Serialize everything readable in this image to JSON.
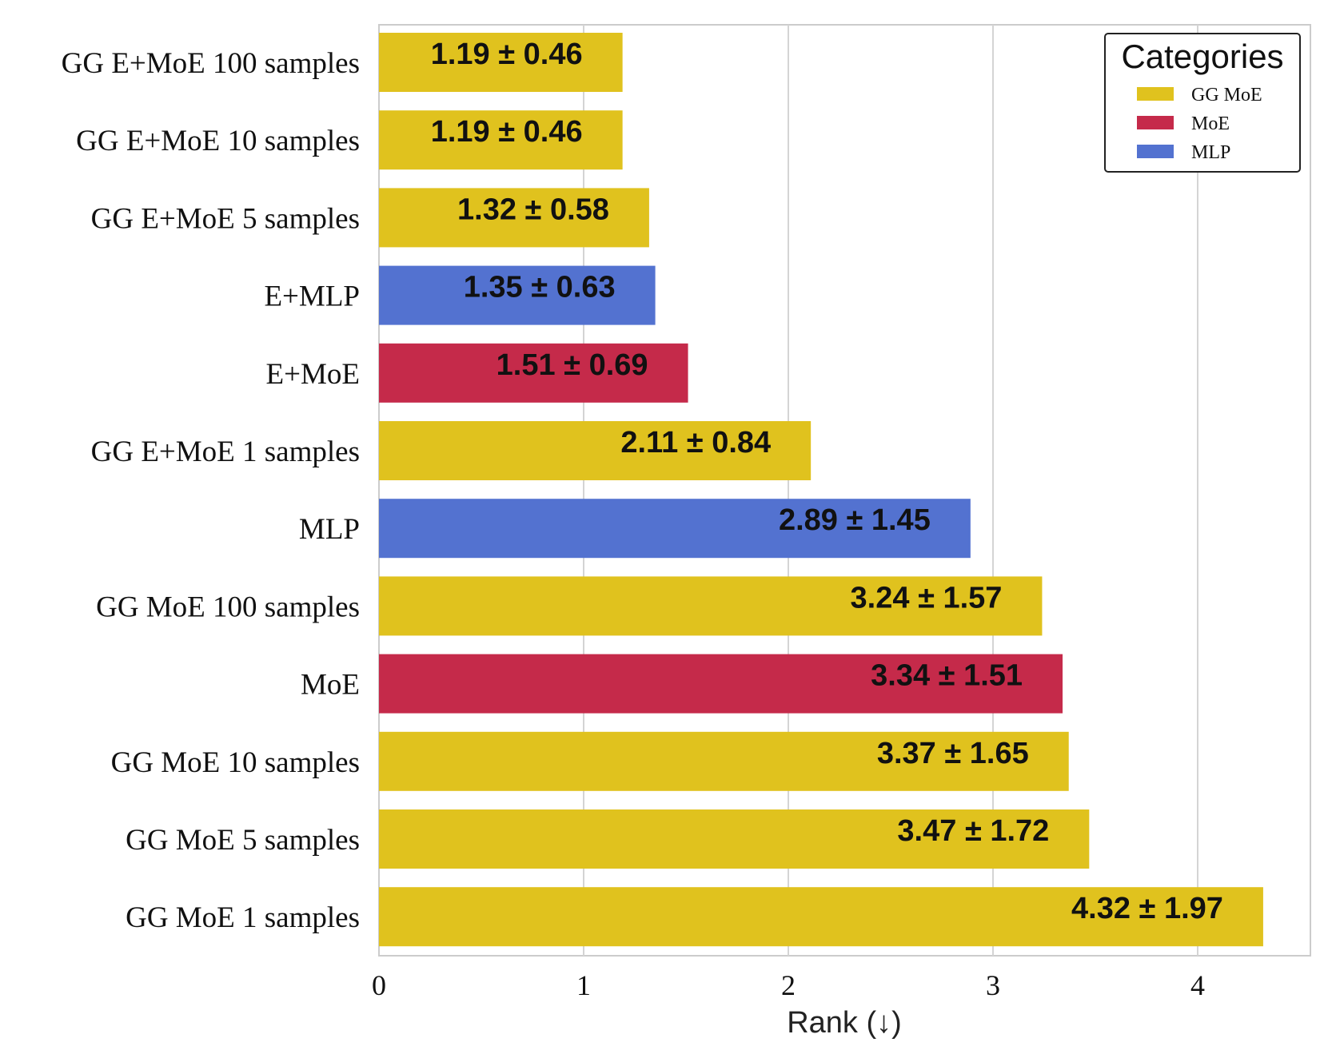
{
  "chart_data": {
    "type": "bar",
    "orientation": "horizontal",
    "xlabel": "Rank (↓)",
    "xlim": [
      0,
      4.55
    ],
    "xticks": [
      0,
      1,
      2,
      3,
      4
    ],
    "grid": true,
    "legend": {
      "title": "Categories",
      "placement": "top-right",
      "entries": [
        {
          "name": "GG MoE",
          "color": "#E0C21E"
        },
        {
          "name": "MoE",
          "color": "#C52A4A"
        },
        {
          "name": "MLP",
          "color": "#5372D0"
        }
      ]
    },
    "bars": [
      {
        "label": "GG E+MoE 100 samples",
        "value": 1.19,
        "text": "1.19 ± 0.46",
        "category": "GG MoE"
      },
      {
        "label": "GG E+MoE 10 samples",
        "value": 1.19,
        "text": "1.19 ± 0.46",
        "category": "GG MoE"
      },
      {
        "label": "GG E+MoE 5 samples",
        "value": 1.32,
        "text": "1.32 ± 0.58",
        "category": "GG MoE"
      },
      {
        "label": "E+MLP",
        "value": 1.35,
        "text": "1.35 ± 0.63",
        "category": "MLP"
      },
      {
        "label": "E+MoE",
        "value": 1.51,
        "text": "1.51 ± 0.69",
        "category": "MoE"
      },
      {
        "label": "GG E+MoE 1 samples",
        "value": 2.11,
        "text": "2.11 ± 0.84",
        "category": "GG MoE"
      },
      {
        "label": "MLP",
        "value": 2.89,
        "text": "2.89 ± 1.45",
        "category": "MLP"
      },
      {
        "label": "GG MoE 100 samples",
        "value": 3.24,
        "text": "3.24 ± 1.57",
        "category": "GG MoE"
      },
      {
        "label": "MoE",
        "value": 3.34,
        "text": "3.34 ± 1.51",
        "category": "MoE"
      },
      {
        "label": "GG MoE 10 samples",
        "value": 3.37,
        "text": "3.37 ± 1.65",
        "category": "GG MoE"
      },
      {
        "label": "GG MoE 5 samples",
        "value": 3.47,
        "text": "3.47 ± 1.72",
        "category": "GG MoE"
      },
      {
        "label": "GG MoE 1 samples",
        "value": 4.32,
        "text": "4.32 ± 1.97",
        "category": "GG MoE"
      }
    ]
  }
}
